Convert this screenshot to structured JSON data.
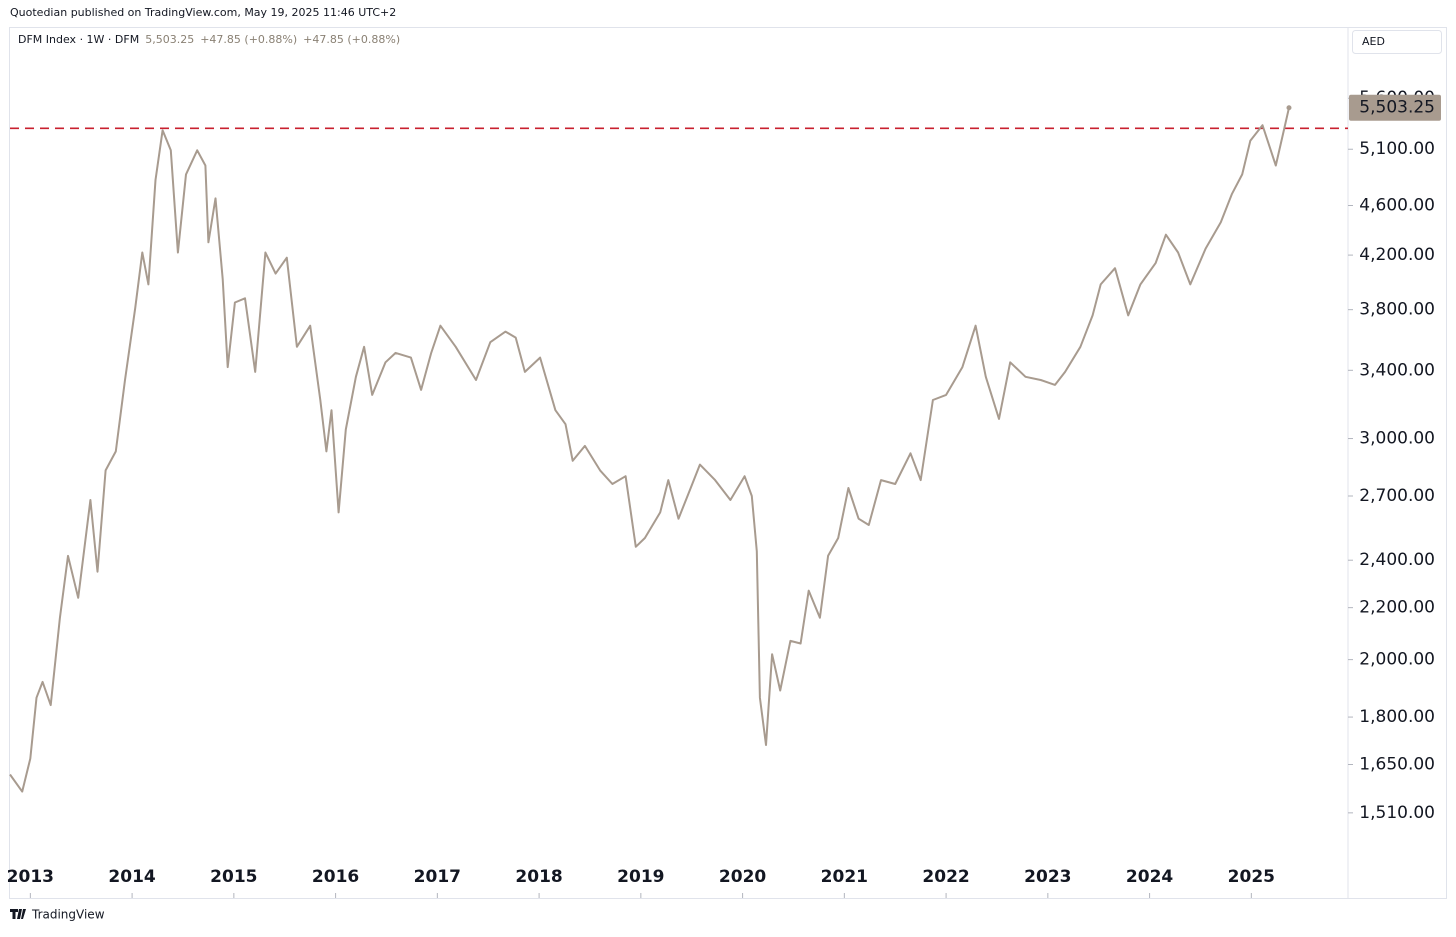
{
  "header": {
    "publisher": "Quotedian published on TradingView.com, May 19, 2025 11:46 UTC+2",
    "footer": "TradingView"
  },
  "chart_data": {
    "type": "line",
    "symbol": "DFM Index · 1W · DFM",
    "price": "5,503.25",
    "change": "+47.85 (+0.88%)",
    "currency": "AED",
    "log_scale": true,
    "color": "#a89b8f",
    "x": [
      2012.8,
      2012.92,
      2013.0,
      2013.06,
      2013.12,
      2013.2,
      2013.29,
      2013.37,
      2013.47,
      2013.59,
      2013.66,
      2013.74,
      2013.84,
      2013.93,
      2014.03,
      2014.1,
      2014.16,
      2014.23,
      2014.3,
      2014.38,
      2014.45,
      2014.53,
      2014.64,
      2014.72,
      2014.75,
      2014.82,
      2014.89,
      2014.94,
      2015.01,
      2015.11,
      2015.21,
      2015.31,
      2015.41,
      2015.52,
      2015.62,
      2015.75,
      2015.85,
      2015.91,
      2015.96,
      2016.03,
      2016.1,
      2016.2,
      2016.28,
      2016.36,
      2016.49,
      2016.59,
      2016.74,
      2016.84,
      2016.94,
      2017.03,
      2017.18,
      2017.38,
      2017.52,
      2017.67,
      2017.77,
      2017.86,
      2018.01,
      2018.16,
      2018.26,
      2018.33,
      2018.45,
      2018.6,
      2018.72,
      2018.85,
      2018.95,
      2019.04,
      2019.19,
      2019.27,
      2019.37,
      2019.49,
      2019.58,
      2019.73,
      2019.88,
      2020.02,
      2020.09,
      2020.14,
      2020.17,
      2020.23,
      2020.29,
      2020.37,
      2020.47,
      2020.57,
      2020.65,
      2020.76,
      2020.84,
      2020.94,
      2021.04,
      2021.14,
      2021.24,
      2021.36,
      2021.5,
      2021.65,
      2021.75,
      2021.87,
      2022.0,
      2022.16,
      2022.29,
      2022.39,
      2022.52,
      2022.63,
      2022.78,
      2022.93,
      2023.07,
      2023.17,
      2023.32,
      2023.44,
      2023.52,
      2023.66,
      2023.79,
      2023.91,
      2024.06,
      2024.16,
      2024.28,
      2024.4,
      2024.55,
      2024.7,
      2024.81,
      2024.91,
      2024.99,
      2025.11,
      2025.24,
      2025.31,
      2025.37
    ],
    "values": [
      1620,
      1570,
      1668,
      1865,
      1920,
      1840,
      2159,
      2419,
      2240,
      2680,
      2350,
      2830,
      2930,
      3340,
      3810,
      4220,
      3980,
      4820,
      5280,
      5090,
      4220,
      4870,
      5090,
      4950,
      4300,
      4660,
      4020,
      3420,
      3850,
      3880,
      3390,
      4220,
      4060,
      4180,
      3550,
      3690,
      3220,
      2930,
      3160,
      2620,
      3050,
      3360,
      3550,
      3250,
      3450,
      3510,
      3480,
      3280,
      3510,
      3690,
      3550,
      3340,
      3580,
      3650,
      3610,
      3390,
      3480,
      3160,
      3080,
      2880,
      2960,
      2830,
      2760,
      2800,
      2460,
      2500,
      2620,
      2780,
      2590,
      2740,
      2860,
      2780,
      2680,
      2800,
      2700,
      2440,
      1865,
      1710,
      2020,
      1890,
      2070,
      2060,
      2270,
      2160,
      2420,
      2500,
      2740,
      2590,
      2560,
      2780,
      2760,
      2920,
      2780,
      3220,
      3250,
      3420,
      3690,
      3360,
      3110,
      3450,
      3360,
      3340,
      3310,
      3390,
      3550,
      3760,
      3980,
      4100,
      3760,
      3980,
      4140,
      4360,
      4220,
      3980,
      4250,
      4460,
      4700,
      4870,
      5180,
      5330,
      4950,
      5240,
      5503.25
    ],
    "last_price": {
      "value": 5503.25,
      "label": "5,503.25"
    },
    "hline": {
      "value": 5300,
      "color": "#c8202f"
    },
    "xlim": [
      2012.8,
      2025.95
    ],
    "xticks": [
      2013,
      2014,
      2015,
      2016,
      2017,
      2018,
      2019,
      2020,
      2021,
      2022,
      2023,
      2024,
      2025
    ],
    "ylim": [
      1390,
      6370
    ],
    "yticks": [
      {
        "value": 1510,
        "label": "1,510.00"
      },
      {
        "value": 1650,
        "label": "1,650.00"
      },
      {
        "value": 1800,
        "label": "1,800.00"
      },
      {
        "value": 2000,
        "label": "2,000.00"
      },
      {
        "value": 2200,
        "label": "2,200.00"
      },
      {
        "value": 2400,
        "label": "2,400.00"
      },
      {
        "value": 2700,
        "label": "2,700.00"
      },
      {
        "value": 3000,
        "label": "3,000.00"
      },
      {
        "value": 3400,
        "label": "3,400.00"
      },
      {
        "value": 3800,
        "label": "3,800.00"
      },
      {
        "value": 4200,
        "label": "4,200.00"
      },
      {
        "value": 4600,
        "label": "4,600.00"
      },
      {
        "value": 5100,
        "label": "5,100.00"
      },
      {
        "value": 5600,
        "label": "5,600.00"
      }
    ]
  }
}
